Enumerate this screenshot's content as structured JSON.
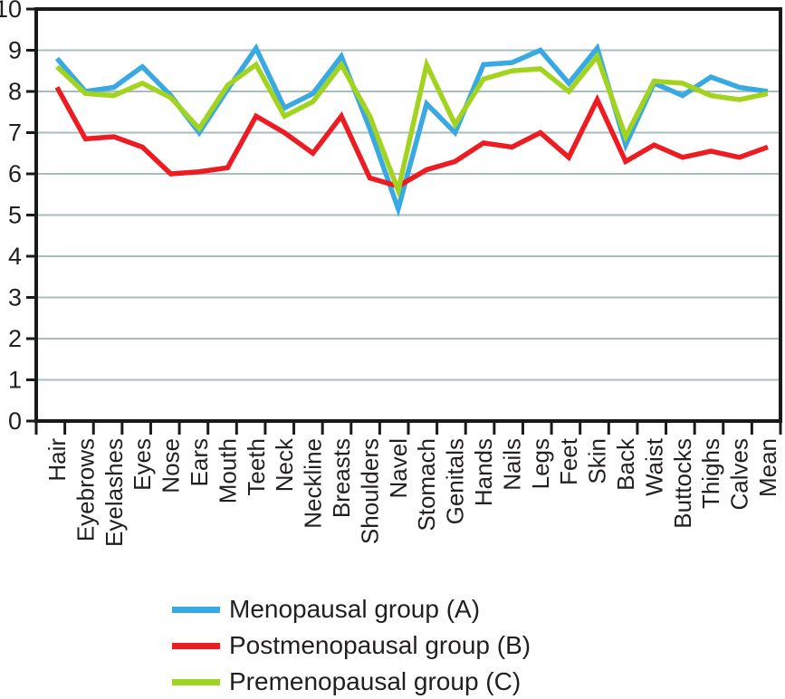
{
  "chart_data": {
    "type": "line",
    "title": "",
    "xlabel": "",
    "ylabel": "",
    "ylim": [
      0,
      10
    ],
    "ytick_step": 1,
    "yticks": [
      "0",
      "1",
      "2",
      "3",
      "4",
      "5",
      "6",
      "7",
      "8",
      "9",
      "10"
    ],
    "grid": "horizontal-only",
    "legend_position": "bottom",
    "categories": [
      "Hair",
      "Eyebrows",
      "Eyelashes",
      "Eyes",
      "Nose",
      "Ears",
      "Mouth",
      "Teeth",
      "Neck",
      "Neckline",
      "Breasts",
      "Shoulders",
      "Navel",
      "Stomach",
      "Genitals",
      "Hands",
      "Nails",
      "Legs",
      "Feet",
      "Skin",
      "Back",
      "Waist",
      "Buttocks",
      "Thighs",
      "Calves",
      "Mean"
    ],
    "series": [
      {
        "name": "Menopausal group (A)",
        "color": "#38a9e2",
        "values": [
          8.8,
          8.0,
          8.1,
          8.6,
          7.9,
          7.0,
          8.05,
          9.05,
          7.6,
          7.95,
          8.85,
          7.1,
          5.15,
          7.7,
          7.0,
          8.65,
          8.7,
          9.0,
          8.2,
          9.05,
          6.7,
          8.2,
          7.9,
          8.35,
          8.1,
          8.0
        ]
      },
      {
        "name": "Postmenopausal group (B)",
        "color": "#ec1c22",
        "values": [
          8.1,
          6.85,
          6.9,
          6.65,
          6.0,
          6.05,
          6.15,
          7.4,
          7.0,
          6.5,
          7.4,
          5.9,
          5.7,
          6.1,
          6.3,
          6.75,
          6.65,
          7.0,
          6.4,
          7.8,
          6.3,
          6.7,
          6.4,
          6.55,
          6.4,
          6.65
        ]
      },
      {
        "name": "Premenopausal group (C)",
        "color": "#a2d41f",
        "values": [
          8.6,
          7.95,
          7.9,
          8.2,
          7.85,
          7.1,
          8.15,
          8.65,
          7.4,
          7.75,
          8.65,
          7.4,
          5.6,
          8.65,
          7.2,
          8.3,
          8.5,
          8.55,
          8.0,
          8.85,
          6.9,
          8.25,
          8.2,
          7.9,
          7.8,
          7.95
        ]
      }
    ],
    "colors": {
      "axis": "#1a1a1a",
      "grid": "#aabdbd",
      "text": "#231f20",
      "background": "#ffffff"
    }
  }
}
